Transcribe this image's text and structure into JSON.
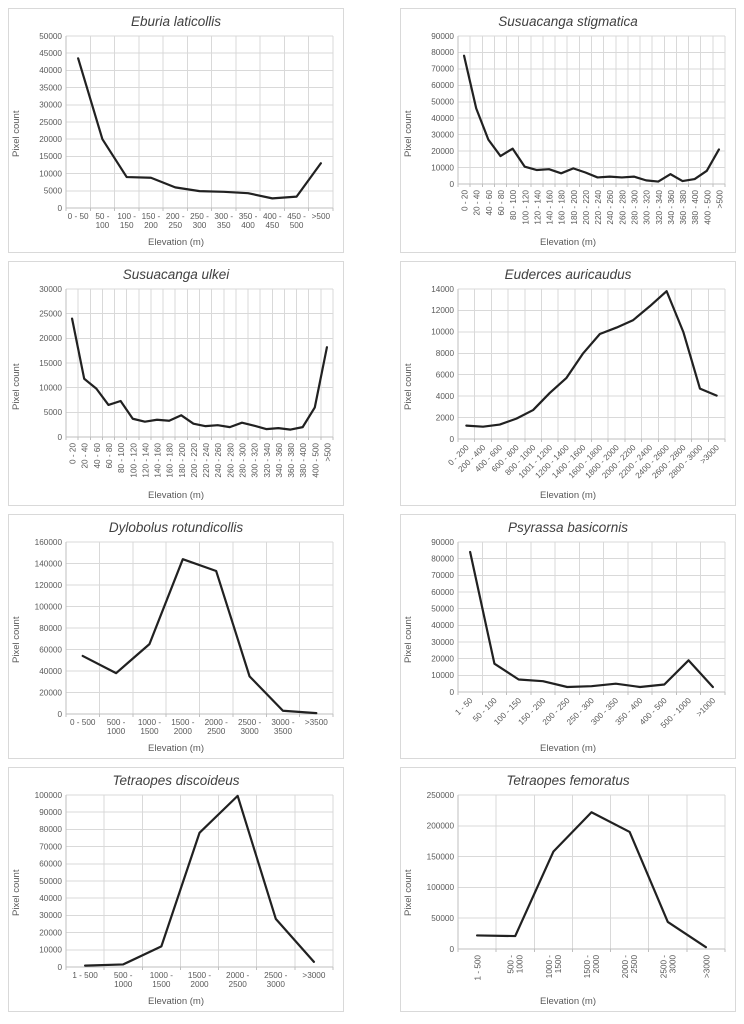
{
  "page": {
    "background": "#ffffff",
    "layout": "2x4 chart grid"
  },
  "colors": {
    "line": "#212121",
    "grid": "#d9d9d9",
    "axis": "#bfbfbf",
    "tick_text": "#595959",
    "title_text": "#404040",
    "panel_border": "#d9d9d9"
  },
  "chart_data": [
    {
      "type": "line",
      "title": "Eburia laticollis",
      "xlabel": "Elevation (m)",
      "ylabel": "Pixel count",
      "categories": [
        "0 - 50",
        "50 - 100",
        "100 - 150",
        "150 - 200",
        "200 - 250",
        "250 - 300",
        "300 - 350",
        "350 - 400",
        "400 - 450",
        "450 - 500",
        ">500"
      ],
      "values": [
        43500,
        20000,
        9000,
        8800,
        6000,
        4900,
        4700,
        4300,
        2800,
        3300,
        13000
      ],
      "ylim": [
        0,
        50000
      ],
      "ystep": 5000,
      "label_rotation": 0,
      "label_wrap": true,
      "grid": true,
      "legend": "none"
    },
    {
      "type": "line",
      "title": "Susuacanga stigmatica",
      "xlabel": "Elevation (m)",
      "ylabel": "Pixel count",
      "categories": [
        "0 - 20",
        "20 - 40",
        "40 - 60",
        "60 - 80",
        "80 - 100",
        "100 - 120",
        "120 - 140",
        "140 - 160",
        "160 - 180",
        "180 - 200",
        "200 - 220",
        "220 - 240",
        "240 - 260",
        "260 - 280",
        "280 - 300",
        "300 - 320",
        "320 - 340",
        "340 - 360",
        "360 - 380",
        "380 - 400",
        "400 - 500",
        ">500"
      ],
      "values": [
        78000,
        46000,
        27000,
        17000,
        21500,
        10500,
        8500,
        9000,
        6500,
        9500,
        7000,
        4000,
        4500,
        4000,
        4500,
        2200,
        1500,
        6000,
        1800,
        3000,
        8000,
        21000
      ],
      "ylim": [
        0,
        90000
      ],
      "ystep": 10000,
      "label_rotation": 90,
      "label_wrap": false,
      "grid": true,
      "legend": "none"
    },
    {
      "type": "line",
      "title": "Susuacanga ulkei",
      "xlabel": "Elevation (m)",
      "ylabel": "Pixel count",
      "categories": [
        "0 - 20",
        "20 - 40",
        "40 - 60",
        "60 - 80",
        "80 - 100",
        "100 - 120",
        "120 - 140",
        "140 - 160",
        "160 - 180",
        "180 - 200",
        "200 - 220",
        "220 - 240",
        "240 - 260",
        "260 - 280",
        "280 - 300",
        "300 - 320",
        "320 - 340",
        "340 - 360",
        "360 - 380",
        "380 - 400",
        "400 - 500",
        ">500"
      ],
      "values": [
        24000,
        11800,
        9800,
        6500,
        7300,
        3700,
        3100,
        3500,
        3300,
        4400,
        2700,
        2200,
        2400,
        2000,
        2900,
        2300,
        1600,
        1800,
        1500,
        2000,
        6000,
        18200
      ],
      "ylim": [
        0,
        30000
      ],
      "ystep": 5000,
      "label_rotation": 90,
      "label_wrap": false,
      "grid": true,
      "legend": "none"
    },
    {
      "type": "line",
      "title": "Euderces auricaudus",
      "xlabel": "Elevation (m)",
      "ylabel": "Pixel count",
      "categories": [
        "0 - 200",
        "200 - 400",
        "400 - 600",
        "600 - 800",
        "800 - 1000",
        "1001 - 1200",
        "1200 - 1400",
        "1400 - 1600",
        "1600 - 1800",
        "1800 - 2000",
        "2000 - 2200",
        "2200 - 2400",
        "2400 - 2600",
        "2600 - 2800",
        "2800 - 3000",
        ">3000"
      ],
      "values": [
        1250,
        1150,
        1350,
        1900,
        2700,
        4300,
        5700,
        8000,
        9800,
        10400,
        11100,
        12400,
        13800,
        10000,
        4700,
        4050
      ],
      "ylim": [
        0,
        14000
      ],
      "ystep": 2000,
      "label_rotation": 45,
      "label_wrap": false,
      "grid": true,
      "legend": "none"
    },
    {
      "type": "line",
      "title": "Dylobolus rotundicollis",
      "xlabel": "Elevation (m)",
      "ylabel": "Pixel count",
      "categories": [
        "0 - 500",
        "500 - 1000",
        "1000 - 1500",
        "1500 - 2000",
        "2000 - 2500",
        "2500 - 3000",
        "3000 - 3500",
        ">3500"
      ],
      "values": [
        54000,
        38000,
        65000,
        144000,
        133000,
        35000,
        3000,
        800
      ],
      "ylim": [
        0,
        160000
      ],
      "ystep": 20000,
      "label_rotation": 0,
      "label_wrap": true,
      "grid": true,
      "legend": "none"
    },
    {
      "type": "line",
      "title": "Psyrassa basicornis",
      "xlabel": "Elevation (m)",
      "ylabel": "Pixel count",
      "categories": [
        "1 - 50",
        "50 - 100",
        "100 - 150",
        "150 - 200",
        "200 - 250",
        "250 - 300",
        "300 - 350",
        "350 - 400",
        "400 - 500",
        "500 - 1000",
        ">1000"
      ],
      "values": [
        84000,
        17000,
        7500,
        6500,
        3000,
        3500,
        5000,
        3000,
        4500,
        19000,
        3000
      ],
      "ylim": [
        0,
        90000
      ],
      "ystep": 10000,
      "label_rotation": 45,
      "label_wrap": false,
      "grid": true,
      "legend": "none"
    },
    {
      "type": "line",
      "title": "Tetraopes discoideus",
      "xlabel": "Elevation (m)",
      "ylabel": "Pixel count",
      "categories": [
        "1 - 500",
        "500 - 1000",
        "1000 - 1500",
        "1500 - 2000",
        "2000 - 2500",
        "2500 - 3000",
        ">3000"
      ],
      "values": [
        800,
        1500,
        12000,
        78000,
        99500,
        28000,
        3000
      ],
      "ylim": [
        0,
        100000
      ],
      "ystep": 10000,
      "label_rotation": 0,
      "label_wrap": true,
      "grid": true,
      "legend": "none"
    },
    {
      "type": "line",
      "title": "Tetraopes femoratus",
      "xlabel": "Elevation (m)",
      "ylabel": "Pixel count",
      "categories": [
        "1 - 500",
        "500 - 1000",
        "1000 - 1500",
        "1500 - 2000",
        "2000 - 2500",
        "2500 - 3000",
        ">3000"
      ],
      "values": [
        22000,
        21000,
        158000,
        222000,
        190000,
        44000,
        3000
      ],
      "ylim": [
        0,
        250000
      ],
      "ystep": 50000,
      "label_rotation": 90,
      "label_wrap": true,
      "grid": true,
      "legend": "none"
    }
  ]
}
